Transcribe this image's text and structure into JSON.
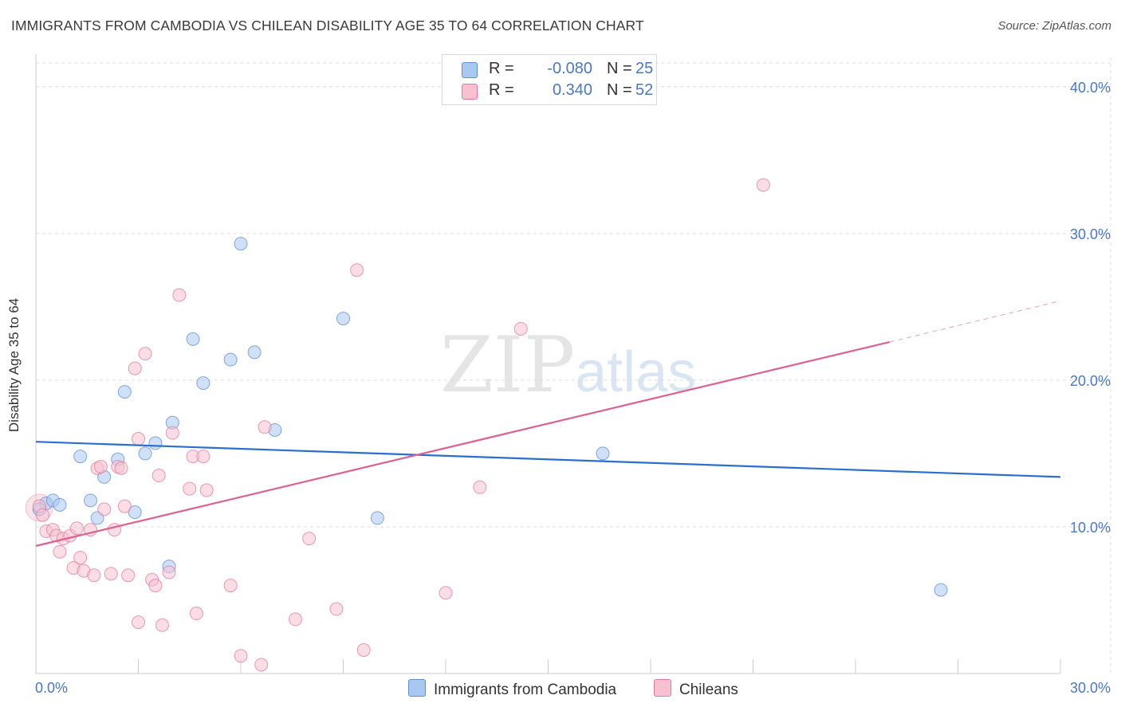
{
  "title": "IMMIGRANTS FROM CAMBODIA VS CHILEAN DISABILITY AGE 35 TO 64 CORRELATION CHART",
  "source": "Source: ZipAtlas.com",
  "watermark": {
    "zip": "ZIP",
    "atlas": "atlas"
  },
  "legend": {
    "rows": [
      {
        "r_label": "R =",
        "r_value": "-0.080",
        "n_label": "N =",
        "n_value": "25",
        "color": "#a9c8f0",
        "border": "#5b8fd6"
      },
      {
        "r_label": "R =",
        "r_value": "0.340",
        "n_label": "N =",
        "n_value": "52",
        "color": "#f7c1d1",
        "border": "#e07a9c"
      }
    ]
  },
  "bottom_legend": [
    "Immigrants from Cambodia",
    "Chileans"
  ],
  "colors": {
    "blue_fill": "#a9c8f0",
    "blue_stroke": "#5b8fd6",
    "blue_line": "#2a6fcc",
    "pink_fill": "#f7c1d1",
    "pink_stroke": "#e07a9c",
    "pink_line": "#e0608f",
    "tick_label": "#4a78c6",
    "grid": "#dddddd"
  },
  "chart_data": {
    "type": "scatter",
    "title": "IMMIGRANTS FROM CAMBODIA VS CHILEAN DISABILITY AGE 35 TO 64 CORRELATION CHART",
    "xlabel": "",
    "ylabel": "Disability Age 35 to 64",
    "xlim": [
      0,
      30
    ],
    "ylim": [
      0,
      42
    ],
    "x_tick_labels": [
      "0.0%",
      "30.0%"
    ],
    "y_ticks": [
      10,
      20,
      30,
      40
    ],
    "y_tick_labels": [
      "10.0%",
      "20.0%",
      "30.0%",
      "40.0%"
    ],
    "grid": true,
    "series": [
      {
        "name": "Immigrants from Cambodia",
        "R": -0.08,
        "N": 25,
        "points": [
          [
            0.3,
            11.6
          ],
          [
            0.5,
            11.8
          ],
          [
            0.7,
            11.5
          ],
          [
            1.3,
            14.8
          ],
          [
            1.6,
            11.8
          ],
          [
            1.8,
            10.6
          ],
          [
            2.0,
            13.4
          ],
          [
            2.4,
            14.6
          ],
          [
            2.6,
            19.2
          ],
          [
            2.9,
            11.0
          ],
          [
            3.2,
            15.0
          ],
          [
            3.5,
            15.7
          ],
          [
            3.9,
            7.3
          ],
          [
            4.0,
            17.1
          ],
          [
            4.6,
            22.8
          ],
          [
            4.9,
            19.8
          ],
          [
            5.7,
            21.4
          ],
          [
            6.0,
            29.3
          ],
          [
            6.4,
            21.9
          ],
          [
            7.0,
            16.6
          ],
          [
            9.0,
            24.2
          ],
          [
            10.0,
            10.6
          ],
          [
            16.6,
            15.0
          ],
          [
            26.5,
            5.7
          ],
          [
            0.1,
            11.2
          ]
        ],
        "trend": {
          "x": [
            0,
            30
          ],
          "y": [
            15.8,
            13.4
          ]
        }
      },
      {
        "name": "Chileans",
        "R": 0.34,
        "N": 52,
        "points": [
          [
            0.1,
            11.4
          ],
          [
            0.2,
            10.8
          ],
          [
            0.3,
            9.7
          ],
          [
            0.5,
            9.8
          ],
          [
            0.6,
            9.4
          ],
          [
            0.7,
            8.3
          ],
          [
            0.8,
            9.2
          ],
          [
            1.0,
            9.4
          ],
          [
            1.1,
            7.2
          ],
          [
            1.2,
            9.9
          ],
          [
            1.3,
            7.9
          ],
          [
            1.4,
            7.0
          ],
          [
            1.6,
            9.8
          ],
          [
            1.7,
            6.7
          ],
          [
            1.8,
            14.0
          ],
          [
            1.9,
            14.1
          ],
          [
            2.0,
            11.2
          ],
          [
            2.2,
            6.8
          ],
          [
            2.3,
            9.8
          ],
          [
            2.4,
            14.1
          ],
          [
            2.5,
            14.0
          ],
          [
            2.6,
            11.4
          ],
          [
            2.7,
            6.7
          ],
          [
            2.9,
            20.8
          ],
          [
            3.0,
            3.5
          ],
          [
            3.0,
            16.0
          ],
          [
            3.2,
            21.8
          ],
          [
            3.4,
            6.4
          ],
          [
            3.5,
            6.0
          ],
          [
            3.6,
            13.5
          ],
          [
            3.7,
            3.3
          ],
          [
            3.9,
            6.9
          ],
          [
            4.0,
            16.4
          ],
          [
            4.2,
            25.8
          ],
          [
            4.5,
            12.6
          ],
          [
            4.6,
            14.8
          ],
          [
            4.7,
            4.1
          ],
          [
            4.9,
            14.8
          ],
          [
            5.0,
            12.5
          ],
          [
            5.7,
            6.0
          ],
          [
            6.0,
            1.2
          ],
          [
            6.6,
            0.6
          ],
          [
            6.7,
            16.8
          ],
          [
            7.6,
            3.7
          ],
          [
            8.0,
            9.2
          ],
          [
            8.8,
            4.4
          ],
          [
            9.4,
            27.5
          ],
          [
            9.6,
            1.6
          ],
          [
            12.0,
            5.5
          ],
          [
            13.0,
            12.7
          ],
          [
            14.2,
            23.5
          ],
          [
            21.3,
            33.3
          ]
        ],
        "trend": {
          "x": [
            0,
            25
          ],
          "y": [
            8.7,
            22.6
          ]
        },
        "trend_extension": {
          "x": [
            25,
            30
          ],
          "y": [
            22.6,
            25.4
          ]
        }
      }
    ]
  }
}
